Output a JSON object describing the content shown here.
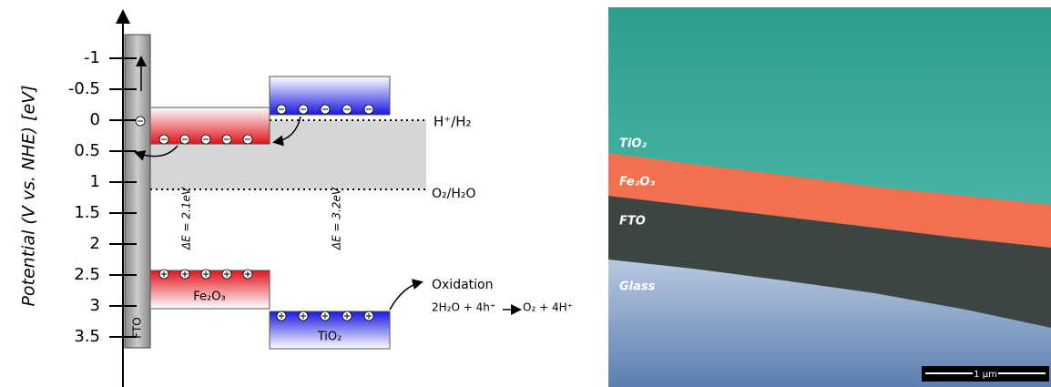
{
  "band_diagram": {
    "axis_label": "Potential (V vs. NHE) [eV]",
    "ticks": [
      -1,
      -0.5,
      0,
      0.5,
      1,
      1.5,
      2,
      2.5,
      3,
      3.5
    ],
    "fto_label": "FTO",
    "delta_e": [
      "ΔE = 2.1eV",
      "ΔE = 3.2eV"
    ],
    "materials": [
      "Fe₂O₃",
      "TiO₂"
    ],
    "reduction_couple": "H⁺/H₂",
    "oxidation_couple": "O₂/H₂O",
    "oxidation_title": "Oxidation",
    "equation_left": "2H₂O + 4h⁺",
    "equation_right": "O₂ + 4H⁺"
  },
  "sem_image": {
    "layers": [
      "TiO₂",
      "Fe₂O₃",
      "FTO",
      "Glass"
    ],
    "scale_bar": "1 µm"
  }
}
